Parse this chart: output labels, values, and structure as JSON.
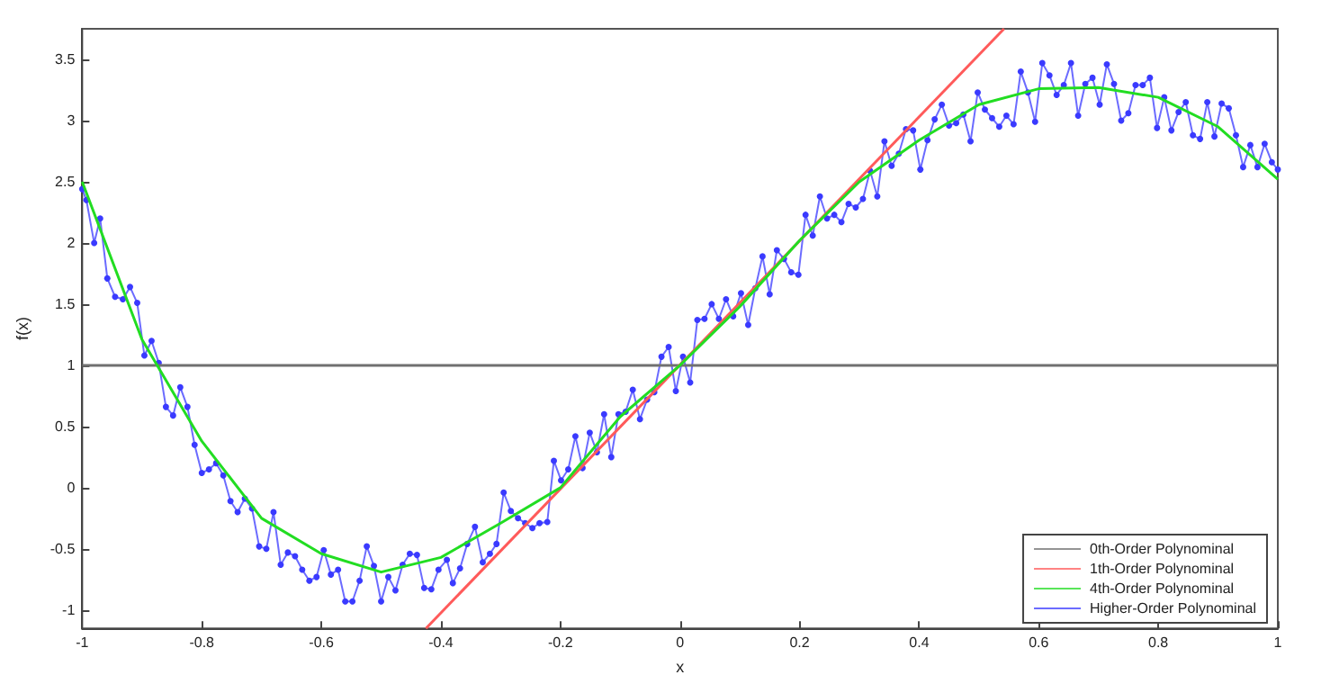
{
  "chart_data": {
    "type": "line",
    "xlabel": "x",
    "ylabel": "f(x)",
    "xlim": [
      -1,
      1
    ],
    "xticks": [
      -1,
      -0.8,
      -0.6,
      -0.4,
      -0.2,
      0,
      0.2,
      0.4,
      0.6,
      0.8,
      1
    ],
    "ylim": [
      -1.15,
      3.75
    ],
    "yticks": [
      -1,
      -0.5,
      0,
      0.5,
      1,
      1.5,
      2,
      2.5,
      3,
      3.5
    ],
    "grid": false,
    "legend": "bottom right",
    "series": [
      {
        "name": "0th-Order Polynominal",
        "color": "#707070",
        "marker": "none",
        "x": [
          -1,
          1
        ],
        "values": [
          1,
          1
        ]
      },
      {
        "name": "1th-Order Polynominal",
        "color": "#ff5a5a",
        "marker": "none",
        "x": [
          -0.425,
          0.542
        ],
        "values": [
          -1.15,
          3.75
        ]
      },
      {
        "name": "4th-Order Polynominal",
        "color": "#22dd22",
        "marker": "none",
        "x": [
          -1,
          -0.9,
          -0.8,
          -0.7,
          -0.6,
          -0.5,
          -0.4,
          -0.3,
          -0.2,
          -0.1,
          0,
          0.1,
          0.2,
          0.3,
          0.4,
          0.5,
          0.6,
          0.7,
          0.8,
          0.9,
          1
        ],
        "values": [
          2.5,
          1.21,
          0.38,
          -0.25,
          -0.54,
          -0.69,
          -0.57,
          -0.29,
          0.0,
          0.58,
          1.0,
          1.48,
          2.02,
          2.5,
          2.84,
          3.13,
          3.26,
          3.27,
          3.19,
          2.95,
          2.52
        ]
      },
      {
        "name": "Higher-Order Polynominal",
        "color": "#3a3aff",
        "marker": "circle",
        "x": [
          -1,
          -0.993,
          -0.98,
          -0.97,
          -0.958,
          -0.945,
          -0.932,
          -0.92,
          -0.908,
          -0.896,
          -0.884,
          -0.872,
          -0.86,
          -0.848,
          -0.836,
          -0.824,
          -0.812,
          -0.8,
          -0.788,
          -0.776,
          -0.764,
          -0.752,
          -0.74,
          -0.728,
          -0.716,
          -0.704,
          -0.692,
          -0.68,
          -0.668,
          -0.656,
          -0.644,
          -0.632,
          -0.62,
          -0.608,
          -0.596,
          -0.584,
          -0.572,
          -0.56,
          -0.548,
          -0.536,
          -0.524,
          -0.512,
          -0.5,
          -0.488,
          -0.476,
          -0.464,
          -0.452,
          -0.44,
          -0.428,
          -0.416,
          -0.404,
          -0.39,
          -0.38,
          -0.368,
          -0.356,
          -0.343,
          -0.33,
          -0.318,
          -0.307,
          -0.295,
          -0.283,
          -0.271,
          -0.259,
          -0.247,
          -0.235,
          -0.222,
          -0.211,
          -0.199,
          -0.187,
          -0.175,
          -0.163,
          -0.151,
          -0.139,
          -0.127,
          -0.115,
          -0.103,
          -0.091,
          -0.079,
          -0.067,
          -0.055,
          -0.043,
          -0.031,
          -0.019,
          -0.007,
          0.005,
          0.017,
          0.029,
          0.041,
          0.053,
          0.065,
          0.077,
          0.089,
          0.102,
          0.114,
          0.126,
          0.138,
          0.15,
          0.162,
          0.174,
          0.186,
          0.198,
          0.21,
          0.222,
          0.234,
          0.246,
          0.258,
          0.27,
          0.282,
          0.294,
          0.306,
          0.318,
          0.33,
          0.342,
          0.354,
          0.366,
          0.378,
          0.39,
          0.402,
          0.414,
          0.426,
          0.438,
          0.45,
          0.462,
          0.474,
          0.486,
          0.498,
          0.51,
          0.522,
          0.534,
          0.546,
          0.558,
          0.57,
          0.582,
          0.594,
          0.606,
          0.618,
          0.63,
          0.642,
          0.654,
          0.666,
          0.678,
          0.69,
          0.702,
          0.714,
          0.726,
          0.738,
          0.75,
          0.762,
          0.774,
          0.786,
          0.798,
          0.81,
          0.822,
          0.834,
          0.846,
          0.858,
          0.87,
          0.882,
          0.894,
          0.906,
          0.918,
          0.93,
          0.942,
          0.954,
          0.966,
          0.978,
          0.99,
          1
        ],
        "values": [
          2.44,
          2.35,
          2.0,
          2.2,
          1.71,
          1.56,
          1.54,
          1.64,
          1.51,
          1.08,
          1.2,
          1.02,
          0.66,
          0.59,
          0.82,
          0.66,
          0.35,
          0.12,
          0.15,
          0.2,
          0.1,
          -0.11,
          -0.2,
          -0.09,
          -0.17,
          -0.48,
          -0.5,
          -0.2,
          -0.63,
          -0.53,
          -0.56,
          -0.67,
          -0.76,
          -0.73,
          -0.51,
          -0.71,
          -0.67,
          -0.93,
          -0.93,
          -0.76,
          -0.48,
          -0.64,
          -0.93,
          -0.73,
          -0.84,
          -0.63,
          -0.54,
          -0.55,
          -0.82,
          -0.83,
          -0.67,
          -0.59,
          -0.78,
          -0.66,
          -0.46,
          -0.32,
          -0.61,
          -0.54,
          -0.46,
          -0.04,
          -0.19,
          -0.25,
          -0.29,
          -0.33,
          -0.29,
          -0.28,
          0.22,
          0.06,
          0.15,
          0.42,
          0.16,
          0.45,
          0.29,
          0.6,
          0.25,
          0.6,
          0.62,
          0.8,
          0.56,
          0.72,
          0.78,
          1.07,
          1.15,
          0.79,
          1.07,
          0.86,
          1.37,
          1.38,
          1.5,
          1.38,
          1.54,
          1.4,
          1.59,
          1.33,
          1.63,
          1.89,
          1.58,
          1.94,
          1.87,
          1.76,
          1.74,
          2.23,
          2.06,
          2.38,
          2.2,
          2.23,
          2.17,
          2.32,
          2.29,
          2.36,
          2.59,
          2.38,
          2.83,
          2.63,
          2.73,
          2.93,
          2.92,
          2.6,
          2.84,
          3.01,
          3.13,
          2.96,
          2.98,
          3.05,
          2.83,
          3.23,
          3.09,
          3.02,
          2.95,
          3.04,
          2.97,
          3.4,
          3.23,
          2.99,
          3.47,
          3.37,
          3.21,
          3.29,
          3.47,
          3.04,
          3.3,
          3.35,
          3.13,
          3.46,
          3.3,
          3.0,
          3.06,
          3.29,
          3.29,
          3.35,
          2.94,
          3.19,
          2.92,
          3.07,
          3.15,
          2.88,
          2.85,
          3.15,
          2.87,
          3.14,
          3.1,
          2.88,
          2.62,
          2.8,
          2.62,
          2.81,
          2.66,
          2.6
        ]
      }
    ]
  }
}
